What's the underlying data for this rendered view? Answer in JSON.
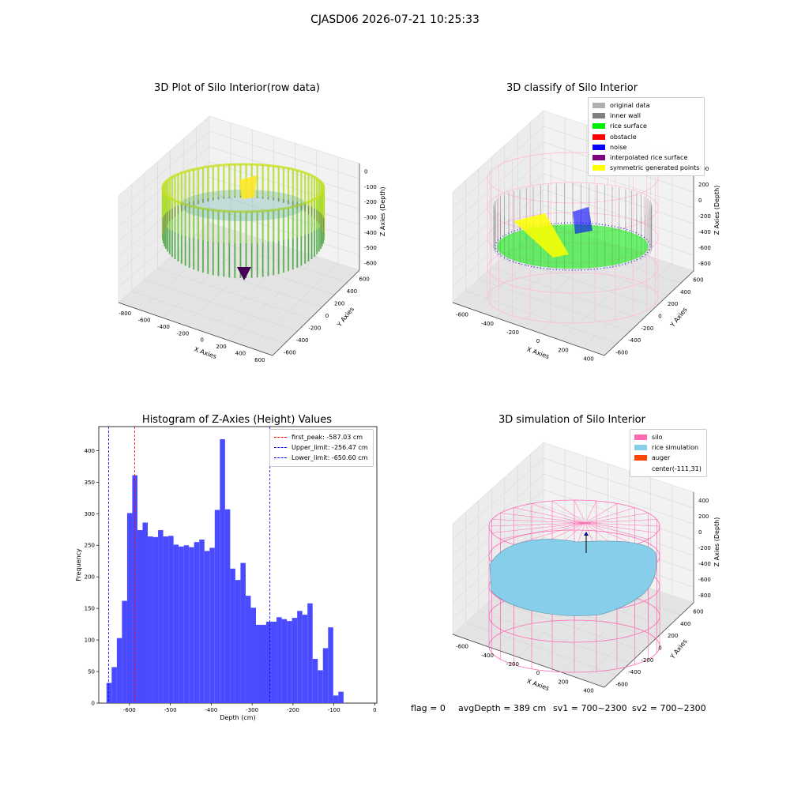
{
  "figure": {
    "suptitle": "CJASD06 2026-07-21 10:25:33",
    "footer": {
      "flag": "flag = 0",
      "avg_depth": "avgDepth = 389 cm",
      "sv1": "sv1 = 700~2300",
      "sv2": "sv2 = 700~2300"
    }
  },
  "colors": {
    "histogram_bar": "#4a4aff",
    "first_peak": "#ff0000",
    "limits": "#0000ff",
    "silo_wire": "#ff69b4",
    "rice_sim": "#87ceeb",
    "auger": "#ff4500"
  },
  "chart_data": [
    {
      "type": "scatter",
      "title": "3D Plot of Silo Interior(row data)",
      "xlabel": "X Axies",
      "ylabel": "Y Axies",
      "zlabel": "Z Axies (Depth)",
      "x_ticks": [
        "-800",
        "-600",
        "-400",
        "-200",
        "0",
        "200",
        "400",
        "600"
      ],
      "y_ticks": [
        "-600",
        "-400",
        "-200",
        "0",
        "200",
        "400",
        "600"
      ],
      "z_ticks": [
        "0",
        "-100",
        "-200",
        "-300",
        "-400",
        "-500",
        "-600"
      ],
      "colormap": "viridis"
    },
    {
      "type": "scatter",
      "title": "3D classify of Silo Interior",
      "xlabel": "X Axies",
      "ylabel": "Y Axies",
      "zlabel": "Z Axies (Depth)",
      "x_ticks": [
        "-600",
        "-400",
        "-200",
        "0",
        "200",
        "400"
      ],
      "y_ticks": [
        "-600",
        "-400",
        "-200",
        "0",
        "200",
        "400",
        "600"
      ],
      "z_ticks": [
        "400",
        "200",
        "0",
        "-200",
        "-400",
        "-600",
        "-800"
      ],
      "z_ticks_partial": "00",
      "legend": [
        {
          "label": "original data",
          "color": "#b0b0b0"
        },
        {
          "label": "inner wall",
          "color": "#808080"
        },
        {
          "label": "rice surface",
          "color": "#00ee00"
        },
        {
          "label": "obstacle",
          "color": "#ff0000"
        },
        {
          "label": "noise",
          "color": "#0000ff"
        },
        {
          "label": "interpolated rice surface",
          "color": "#800080"
        },
        {
          "label": "symmetric generated points",
          "color": "#ffff00"
        }
      ]
    },
    {
      "type": "bar",
      "title": "Histogram of Z-Axies (Height) Values",
      "xlabel": "Depth (cm)",
      "ylabel": "Frequency",
      "xlim": [
        -675,
        5
      ],
      "ylim": [
        0,
        438
      ],
      "x_ticks": [
        -600,
        -500,
        -400,
        -300,
        -200,
        -100,
        0
      ],
      "y_ticks": [
        0,
        50,
        100,
        150,
        200,
        250,
        300,
        350,
        400
      ],
      "bin_start": -656,
      "bin_width": 12.6,
      "values": [
        32,
        57,
        103,
        162,
        301,
        361,
        274,
        286,
        264,
        263,
        274,
        264,
        265,
        251,
        248,
        250,
        247,
        255,
        259,
        241,
        246,
        306,
        418,
        307,
        213,
        195,
        222,
        170,
        151,
        124,
        124,
        129,
        129,
        136,
        133,
        130,
        135,
        146,
        140,
        158,
        70,
        52,
        87,
        120,
        12,
        18
      ],
      "vlines": [
        {
          "label": "first_peak: -587.03 cm",
          "x": -587.03,
          "color": "#ff0000"
        },
        {
          "label": "Upper_limit: -256.47 cm",
          "x": -256.47,
          "color": "#0000ff"
        },
        {
          "label": "Lower_limit: -650.60 cm",
          "x": -650.6,
          "color": "#0000ff"
        }
      ]
    },
    {
      "type": "scatter",
      "title": "3D simulation of Silo Interior",
      "xlabel": "X Axies",
      "ylabel": "Y Axies",
      "zlabel": "Z Axies (Depth)",
      "x_ticks": [
        "-600",
        "-400",
        "-200",
        "0",
        "200",
        "400"
      ],
      "y_ticks": [
        "-600",
        "-400",
        "-200",
        "0",
        "200",
        "400",
        "600"
      ],
      "z_ticks": [
        "400",
        "200",
        "0",
        "-200",
        "-400",
        "-600",
        "-800"
      ],
      "legend": [
        {
          "label": "silo",
          "color": "#ff69b4"
        },
        {
          "label": "rice simulation",
          "color": "#87ceeb"
        },
        {
          "label": "auger",
          "color": "#ff4500"
        },
        {
          "label": "center(-111,31)",
          "color": ""
        }
      ]
    }
  ]
}
